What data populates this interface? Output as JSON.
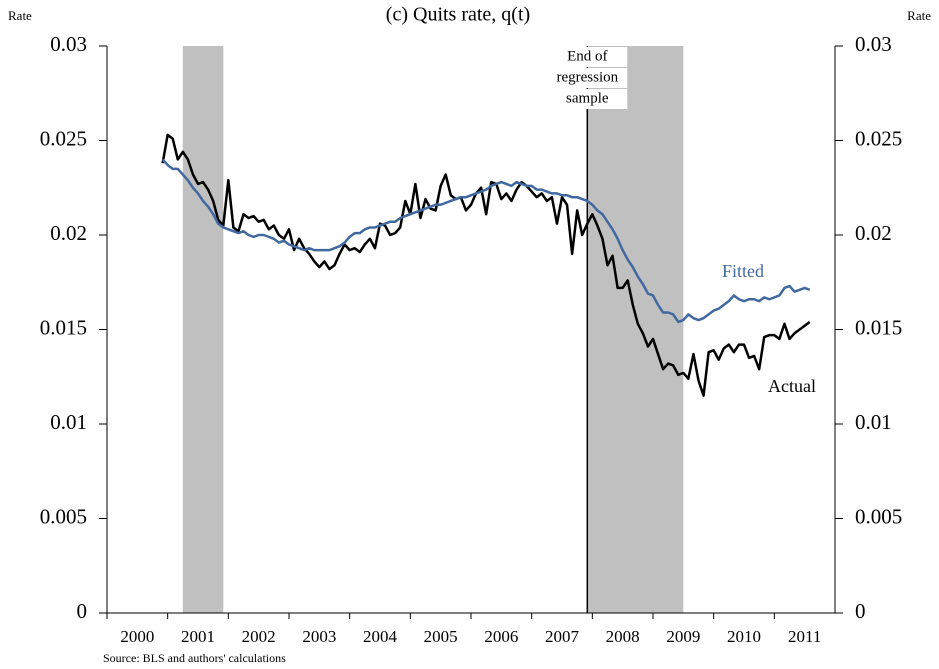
{
  "chart_data": {
    "type": "line",
    "title": "(c) Quits rate, q(t)",
    "y_label": "Rate",
    "y2_label": "Rate",
    "source": "Source: BLS and authors' calculations",
    "annotation": [
      "End of",
      "regression",
      "sample"
    ],
    "annotation_x": 2007.917,
    "shaded_periods": [
      [
        2001.25,
        2001.917
      ],
      [
        2007.917,
        2009.5
      ]
    ],
    "xlim": [
      2000,
      2012
    ],
    "xticks": [
      {
        "value": 2000,
        "label": "2000"
      },
      {
        "value": 2001,
        "label": "2001"
      },
      {
        "value": 2002,
        "label": "2002"
      },
      {
        "value": 2003,
        "label": "2003"
      },
      {
        "value": 2004,
        "label": "2004"
      },
      {
        "value": 2005,
        "label": "2005"
      },
      {
        "value": 2006,
        "label": "2006"
      },
      {
        "value": 2007,
        "label": "2007"
      },
      {
        "value": 2008,
        "label": "2008"
      },
      {
        "value": 2009,
        "label": "2009"
      },
      {
        "value": 2010,
        "label": "2010"
      },
      {
        "value": 2011,
        "label": "2011"
      }
    ],
    "ylim": [
      0,
      0.03
    ],
    "yticks": [
      0,
      0.005,
      0.01,
      0.015,
      0.02,
      0.025,
      0.03
    ],
    "y2lim": [
      0,
      0.03
    ],
    "y2ticks": [
      0,
      0.005,
      0.01,
      0.015,
      0.02,
      0.025,
      0.03
    ],
    "x": [
      2000.917,
      2001.0,
      2001.083,
      2001.167,
      2001.25,
      2001.333,
      2001.417,
      2001.5,
      2001.583,
      2001.667,
      2001.75,
      2001.833,
      2001.917,
      2002.0,
      2002.083,
      2002.167,
      2002.25,
      2002.333,
      2002.417,
      2002.5,
      2002.583,
      2002.667,
      2002.75,
      2002.833,
      2002.917,
      2003.0,
      2003.083,
      2003.167,
      2003.25,
      2003.333,
      2003.417,
      2003.5,
      2003.583,
      2003.667,
      2003.75,
      2003.833,
      2003.917,
      2004.0,
      2004.083,
      2004.167,
      2004.25,
      2004.333,
      2004.417,
      2004.5,
      2004.583,
      2004.667,
      2004.75,
      2004.833,
      2004.917,
      2005.0,
      2005.083,
      2005.167,
      2005.25,
      2005.333,
      2005.417,
      2005.5,
      2005.583,
      2005.667,
      2005.75,
      2005.833,
      2005.917,
      2006.0,
      2006.083,
      2006.167,
      2006.25,
      2006.333,
      2006.417,
      2006.5,
      2006.583,
      2006.667,
      2006.75,
      2006.833,
      2006.917,
      2007.0,
      2007.083,
      2007.167,
      2007.25,
      2007.333,
      2007.417,
      2007.5,
      2007.583,
      2007.667,
      2007.75,
      2007.833,
      2007.917,
      2008.0,
      2008.083,
      2008.167,
      2008.25,
      2008.333,
      2008.417,
      2008.5,
      2008.583,
      2008.667,
      2008.75,
      2008.833,
      2008.917,
      2009.0,
      2009.083,
      2009.167,
      2009.25,
      2009.333,
      2009.417,
      2009.5,
      2009.583,
      2009.667,
      2009.75,
      2009.833,
      2009.917,
      2010.0,
      2010.083,
      2010.167,
      2010.25,
      2010.333,
      2010.417,
      2010.5,
      2010.583,
      2010.667,
      2010.75,
      2010.833,
      2010.917,
      2011.0,
      2011.083,
      2011.167,
      2011.25,
      2011.333,
      2011.417,
      2011.5,
      2011.583
    ],
    "series": [
      {
        "name": "Actual",
        "color": "#000000",
        "values": [
          0.0238,
          0.0253,
          0.0251,
          0.024,
          0.0244,
          0.024,
          0.0232,
          0.0227,
          0.0228,
          0.0224,
          0.0218,
          0.0208,
          0.0205,
          0.0229,
          0.0204,
          0.0202,
          0.0211,
          0.0209,
          0.021,
          0.0207,
          0.0208,
          0.0203,
          0.0205,
          0.02,
          0.0198,
          0.0203,
          0.0192,
          0.0198,
          0.0193,
          0.019,
          0.0186,
          0.0183,
          0.0186,
          0.0182,
          0.0184,
          0.019,
          0.0195,
          0.0192,
          0.0193,
          0.0191,
          0.0195,
          0.0198,
          0.0193,
          0.0206,
          0.0205,
          0.02,
          0.0201,
          0.0204,
          0.0218,
          0.0211,
          0.0227,
          0.0209,
          0.0219,
          0.0214,
          0.0213,
          0.0226,
          0.0232,
          0.0221,
          0.0219,
          0.022,
          0.0213,
          0.0216,
          0.0222,
          0.0225,
          0.0211,
          0.0228,
          0.0227,
          0.0219,
          0.0222,
          0.0218,
          0.0224,
          0.0228,
          0.0226,
          0.0223,
          0.022,
          0.0222,
          0.0218,
          0.022,
          0.0206,
          0.022,
          0.0216,
          0.019,
          0.0213,
          0.02,
          0.0206,
          0.0211,
          0.0205,
          0.0198,
          0.0184,
          0.0189,
          0.0172,
          0.0172,
          0.0176,
          0.0163,
          0.0153,
          0.0148,
          0.0141,
          0.0145,
          0.0137,
          0.0129,
          0.0132,
          0.0131,
          0.0126,
          0.0127,
          0.0124,
          0.0137,
          0.0123,
          0.0115,
          0.0138,
          0.0139,
          0.0134,
          0.014,
          0.0142,
          0.0138,
          0.0142,
          0.0142,
          0.0135,
          0.0136,
          0.0129,
          0.0146,
          0.0147,
          0.0147,
          0.0145,
          0.0153,
          0.0145,
          0.0148,
          0.015,
          0.0152,
          0.0154
        ]
      },
      {
        "name": "Fitted",
        "color": "#4169a0",
        "values": [
          0.024,
          0.0237,
          0.0235,
          0.0235,
          0.0232,
          0.0229,
          0.0225,
          0.0222,
          0.0218,
          0.0215,
          0.0211,
          0.0206,
          0.0204,
          0.0203,
          0.0202,
          0.0201,
          0.0202,
          0.02,
          0.0199,
          0.02,
          0.02,
          0.0199,
          0.0198,
          0.0196,
          0.0197,
          0.0195,
          0.0194,
          0.0193,
          0.0192,
          0.0193,
          0.0192,
          0.0192,
          0.0192,
          0.0192,
          0.0193,
          0.0194,
          0.0196,
          0.0199,
          0.0201,
          0.0201,
          0.0203,
          0.0204,
          0.0204,
          0.0205,
          0.0206,
          0.0207,
          0.0207,
          0.0209,
          0.021,
          0.0211,
          0.0212,
          0.0213,
          0.0214,
          0.0215,
          0.0216,
          0.0216,
          0.0217,
          0.0218,
          0.0219,
          0.022,
          0.022,
          0.0221,
          0.0222,
          0.0223,
          0.0224,
          0.0226,
          0.0227,
          0.0228,
          0.0227,
          0.0226,
          0.0228,
          0.0227,
          0.0226,
          0.0226,
          0.0224,
          0.0224,
          0.0223,
          0.0222,
          0.0222,
          0.0221,
          0.0221,
          0.022,
          0.022,
          0.0219,
          0.0218,
          0.0216,
          0.0213,
          0.0211,
          0.0207,
          0.0203,
          0.0198,
          0.0192,
          0.0187,
          0.0183,
          0.0178,
          0.0174,
          0.0169,
          0.0168,
          0.0163,
          0.0159,
          0.0159,
          0.0158,
          0.0154,
          0.0155,
          0.0158,
          0.0156,
          0.0155,
          0.0156,
          0.0158,
          0.016,
          0.0161,
          0.0163,
          0.0165,
          0.0168,
          0.0166,
          0.0165,
          0.0166,
          0.0166,
          0.0165,
          0.0167,
          0.0166,
          0.0167,
          0.0168,
          0.0172,
          0.0173,
          0.017,
          0.0171,
          0.0172,
          0.0171
        ]
      }
    ]
  }
}
